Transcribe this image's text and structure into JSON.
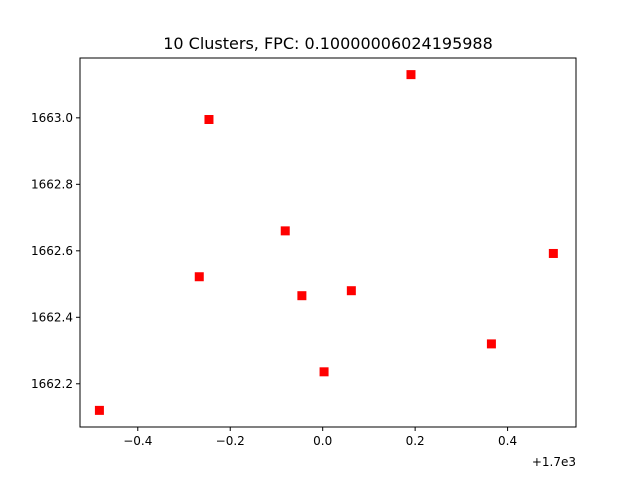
{
  "chart_data": {
    "type": "scatter",
    "title": "10 Clusters, FPC: 0.10000006024195988",
    "xlabel": "",
    "ylabel": "",
    "x_offset_label": "+1.7e3",
    "x_ticks": [
      "−0.4",
      "−0.2",
      "0.0",
      "0.2",
      "0.4"
    ],
    "y_ticks": [
      "1662.2",
      "1662.4",
      "1662.6",
      "1662.8",
      "1663.0"
    ],
    "xlim": [
      1699.475,
      1700.548
    ],
    "ylim": [
      1662.07,
      1663.18
    ],
    "marker": "square",
    "marker_color": "#ff0000",
    "grid": false,
    "points": [
      {
        "x": 1699.517,
        "y": 1662.12
      },
      {
        "x": 1699.754,
        "y": 1662.995
      },
      {
        "x": 1699.733,
        "y": 1662.522
      },
      {
        "x": 1699.919,
        "y": 1662.66
      },
      {
        "x": 1699.955,
        "y": 1662.465
      },
      {
        "x": 1700.003,
        "y": 1662.236
      },
      {
        "x": 1700.062,
        "y": 1662.48
      },
      {
        "x": 1700.191,
        "y": 1663.13
      },
      {
        "x": 1700.365,
        "y": 1662.32
      },
      {
        "x": 1700.499,
        "y": 1662.592
      }
    ]
  }
}
